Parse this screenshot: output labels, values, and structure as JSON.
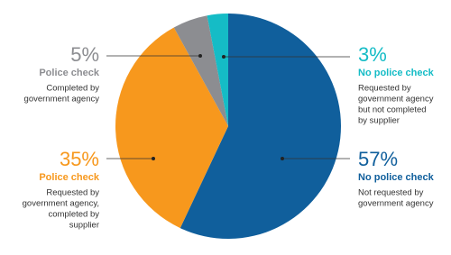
{
  "chart_data": {
    "type": "pie",
    "start_angle": 0,
    "direction": "clockwise",
    "slices": [
      {
        "label": "No police check",
        "value": 57,
        "value_label": "57%",
        "color": "#105f9c",
        "description": [
          "Not requested by",
          "government agency"
        ]
      },
      {
        "label": "Police check",
        "value": 35,
        "value_label": "35%",
        "color": "#f7981d",
        "description": [
          "Requested by",
          "government agency,",
          "completed by",
          "supplier"
        ]
      },
      {
        "label": "Police check",
        "value": 5,
        "value_label": "5%",
        "color": "#8c8d91",
        "description": [
          "Completed by",
          "government agency"
        ]
      },
      {
        "label": "No police check",
        "value": 3,
        "value_label": "3%",
        "color": "#15bcc6",
        "description": [
          "Requested by",
          "government agency",
          "but not completed",
          "by supplier"
        ]
      }
    ]
  }
}
